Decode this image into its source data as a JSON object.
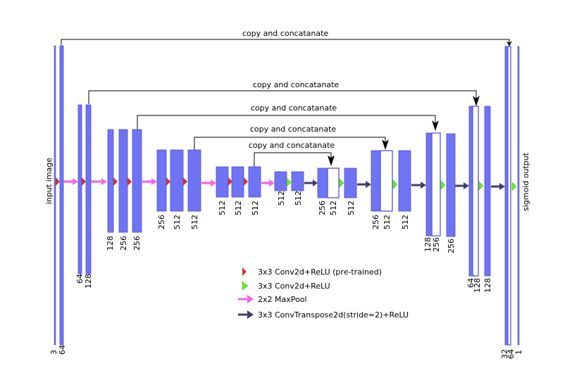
{
  "diagram": {
    "copy_label": "copy and concatanate",
    "input_label": "input image",
    "output_label": "sigmoid output",
    "channels": {
      "in1": "3",
      "in2": "64",
      "e1a": "64",
      "e1b": "128",
      "e2a": "128",
      "e2b": "256",
      "e2c": "256",
      "e3a": "256",
      "e3b": "512",
      "e3c": "512",
      "e4a": "512",
      "e4b": "512",
      "e4c": "512",
      "e5a": "512",
      "e5b": "512",
      "d1a": "256",
      "d1b": "512",
      "d1c": "512",
      "d2a": "256",
      "d2b": "512",
      "d2c": "512",
      "d3a": "128",
      "d3b": "256",
      "d3c": "256",
      "d4a": "64",
      "d4b": "128",
      "d4c": "128",
      "o1": "32",
      "o2": "64",
      "o3": "1"
    },
    "legend": {
      "pretrained": "3x3 Conv2d+ReLU (pre-trained)",
      "conv": "3x3 Conv2d+ReLU",
      "maxpool": "2x2 MaxPool",
      "upconv": "3x3 ConvTranspose2d(stride=2)+ReLU"
    }
  }
}
